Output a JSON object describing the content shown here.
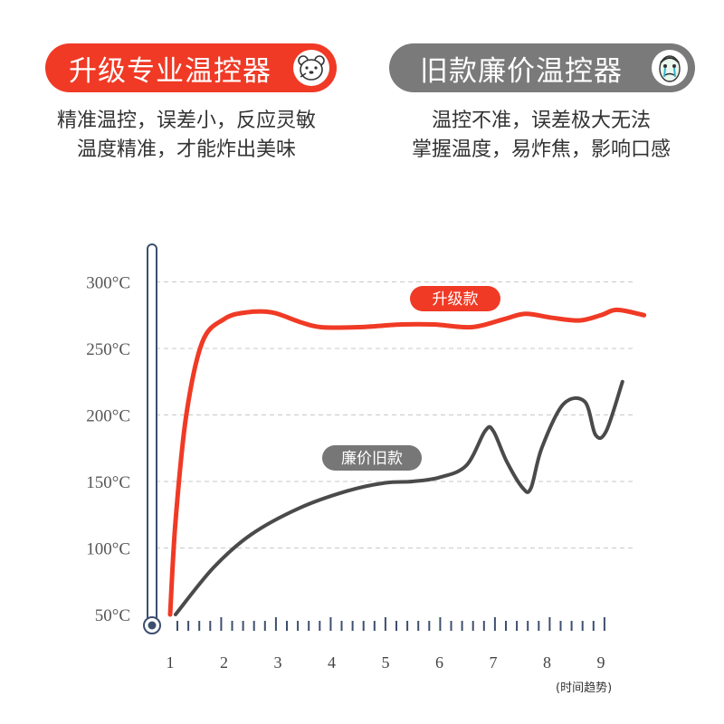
{
  "header": {
    "left_title": "升级专业温控器",
    "right_title": "旧款廉价温控器",
    "left_badge_icon": "polar-bear-icon",
    "right_badge_icon": "crying-face-icon"
  },
  "descriptions": {
    "left": [
      "精准温控，误差小，反应灵敏",
      "温度精准，才能炸出美味"
    ],
    "right": [
      "温控不准，误差极大无法",
      "掌握温度，易炸焦，影响口感"
    ]
  },
  "colors": {
    "upgrade": "#f03a25",
    "old": "#4a4a4a",
    "label_old_bg": "#777777"
  },
  "chart_data": {
    "type": "line",
    "x_axis_note": "(时间趋势)",
    "xticks": [
      "1",
      "2",
      "3",
      "4",
      "5",
      "6",
      "7",
      "8",
      "9"
    ],
    "yticks": [
      "50°C",
      "100°C",
      "150°C",
      "200°C",
      "250°C",
      "300°C"
    ],
    "ylim": [
      50,
      300
    ],
    "xlim": [
      1,
      9.5
    ],
    "grid": true,
    "series": [
      {
        "name": "升级款",
        "color": "#f03a25",
        "points": [
          [
            1.0,
            50
          ],
          [
            1.1,
            120
          ],
          [
            1.3,
            200
          ],
          [
            1.6,
            255
          ],
          [
            2.0,
            272
          ],
          [
            2.4,
            277
          ],
          [
            2.9,
            277
          ],
          [
            3.4,
            270
          ],
          [
            3.8,
            266
          ],
          [
            4.5,
            266
          ],
          [
            5.3,
            268
          ],
          [
            5.9,
            268
          ],
          [
            6.6,
            266
          ],
          [
            7.2,
            272
          ],
          [
            7.6,
            276
          ],
          [
            8.1,
            273
          ],
          [
            8.6,
            271
          ],
          [
            9.0,
            275
          ],
          [
            9.3,
            279
          ],
          [
            9.8,
            275
          ]
        ]
      },
      {
        "name": "廉价旧款",
        "color": "#4a4a4a",
        "points": [
          [
            1.1,
            50
          ],
          [
            1.8,
            85
          ],
          [
            2.5,
            110
          ],
          [
            3.4,
            130
          ],
          [
            4.3,
            143
          ],
          [
            5.0,
            149
          ],
          [
            5.5,
            150
          ],
          [
            6.0,
            153
          ],
          [
            6.5,
            162
          ],
          [
            6.85,
            188
          ],
          [
            7.0,
            188
          ],
          [
            7.25,
            165
          ],
          [
            7.55,
            145
          ],
          [
            7.7,
            145
          ],
          [
            7.9,
            175
          ],
          [
            8.3,
            208
          ],
          [
            8.7,
            210
          ],
          [
            8.9,
            185
          ],
          [
            9.1,
            188
          ],
          [
            9.4,
            225
          ]
        ]
      }
    ]
  }
}
